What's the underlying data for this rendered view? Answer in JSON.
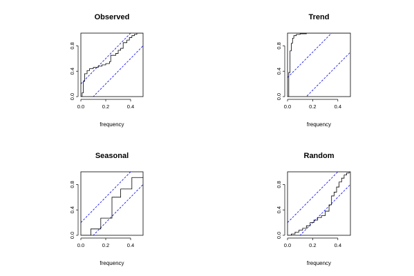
{
  "chart_data": [
    {
      "type": "line",
      "title": "Observed",
      "xlabel": "frequency",
      "ylabel": "",
      "xlim": [
        0,
        0.5
      ],
      "ylim": [
        0,
        1
      ],
      "x_ticks": [
        "0.0",
        "0.2",
        "0.4"
      ],
      "y_ticks": [
        "0.0",
        "0.4",
        "0.8"
      ],
      "band_offset": 0.2,
      "series": [
        {
          "values": [
            [
              0,
              0
            ],
            [
              0.01,
              0
            ],
            [
              0.01,
              0.06
            ],
            [
              0.02,
              0.06
            ],
            [
              0.02,
              0.24
            ],
            [
              0.03,
              0.24
            ],
            [
              0.03,
              0.36
            ],
            [
              0.05,
              0.36
            ],
            [
              0.05,
              0.41
            ],
            [
              0.07,
              0.41
            ],
            [
              0.07,
              0.44
            ],
            [
              0.1,
              0.44
            ],
            [
              0.1,
              0.46
            ],
            [
              0.14,
              0.46
            ],
            [
              0.14,
              0.48
            ],
            [
              0.17,
              0.48
            ],
            [
              0.17,
              0.5
            ],
            [
              0.2,
              0.5
            ],
            [
              0.2,
              0.52
            ],
            [
              0.23,
              0.52
            ],
            [
              0.23,
              0.55
            ],
            [
              0.24,
              0.55
            ],
            [
              0.24,
              0.65
            ],
            [
              0.28,
              0.65
            ],
            [
              0.28,
              0.68
            ],
            [
              0.3,
              0.68
            ],
            [
              0.3,
              0.73
            ],
            [
              0.32,
              0.73
            ],
            [
              0.32,
              0.76
            ],
            [
              0.34,
              0.76
            ],
            [
              0.34,
              0.85
            ],
            [
              0.37,
              0.85
            ],
            [
              0.37,
              0.89
            ],
            [
              0.39,
              0.89
            ],
            [
              0.39,
              0.93
            ],
            [
              0.41,
              0.93
            ],
            [
              0.41,
              0.96
            ],
            [
              0.43,
              0.96
            ],
            [
              0.43,
              0.98
            ],
            [
              0.45,
              0.98
            ],
            [
              0.45,
              1.0
            ],
            [
              0.5,
              1.0
            ]
          ]
        }
      ]
    },
    {
      "type": "line",
      "title": "Trend",
      "xlabel": "frequency",
      "ylabel": "",
      "xlim": [
        0,
        0.5
      ],
      "ylim": [
        0,
        1
      ],
      "x_ticks": [
        "0.0",
        "0.2",
        "0.4"
      ],
      "y_ticks": [
        "0.0",
        "0.4",
        "0.8"
      ],
      "band_offset": 0.3,
      "series": [
        {
          "values": [
            [
              0,
              0
            ],
            [
              0.01,
              0
            ],
            [
              0.01,
              0.38
            ],
            [
              0.02,
              0.38
            ],
            [
              0.02,
              0.72
            ],
            [
              0.03,
              0.72
            ],
            [
              0.03,
              0.84
            ],
            [
              0.04,
              0.84
            ],
            [
              0.04,
              0.92
            ],
            [
              0.05,
              0.92
            ],
            [
              0.05,
              0.96
            ],
            [
              0.07,
              0.96
            ],
            [
              0.07,
              0.98
            ],
            [
              0.1,
              0.98
            ],
            [
              0.1,
              0.99
            ],
            [
              0.15,
              0.99
            ],
            [
              0.15,
              1.0
            ],
            [
              0.5,
              1.0
            ]
          ]
        }
      ]
    },
    {
      "type": "line",
      "title": "Seasonal",
      "xlabel": "frequency",
      "ylabel": "",
      "xlim": [
        0,
        0.5
      ],
      "ylim": [
        0,
        1
      ],
      "x_ticks": [
        "0.0",
        "0.2",
        "0.4"
      ],
      "y_ticks": [
        "0.0",
        "0.4",
        "0.8"
      ],
      "band_offset": 0.2,
      "series": [
        {
          "values": [
            [
              0,
              0
            ],
            [
              0.08,
              0
            ],
            [
              0.08,
              0.1
            ],
            [
              0.16,
              0.1
            ],
            [
              0.16,
              0.27
            ],
            [
              0.25,
              0.27
            ],
            [
              0.25,
              0.6
            ],
            [
              0.32,
              0.6
            ],
            [
              0.32,
              0.73
            ],
            [
              0.41,
              0.73
            ],
            [
              0.41,
              0.91
            ],
            [
              0.5,
              0.91
            ]
          ]
        }
      ]
    },
    {
      "type": "line",
      "title": "Random",
      "xlabel": "frequency",
      "ylabel": "",
      "xlim": [
        0,
        0.5
      ],
      "ylim": [
        0,
        1
      ],
      "x_ticks": [
        "0.0",
        "0.2",
        "0.4"
      ],
      "y_ticks": [
        "0.0",
        "0.4",
        "0.8"
      ],
      "band_offset": 0.2,
      "series": [
        {
          "values": [
            [
              0,
              0
            ],
            [
              0.03,
              0
            ],
            [
              0.03,
              0.02
            ],
            [
              0.06,
              0.02
            ],
            [
              0.06,
              0.05
            ],
            [
              0.09,
              0.05
            ],
            [
              0.09,
              0.08
            ],
            [
              0.12,
              0.08
            ],
            [
              0.12,
              0.11
            ],
            [
              0.15,
              0.11
            ],
            [
              0.15,
              0.15
            ],
            [
              0.18,
              0.15
            ],
            [
              0.18,
              0.2
            ],
            [
              0.21,
              0.2
            ],
            [
              0.21,
              0.24
            ],
            [
              0.24,
              0.24
            ],
            [
              0.24,
              0.28
            ],
            [
              0.27,
              0.28
            ],
            [
              0.27,
              0.31
            ],
            [
              0.3,
              0.31
            ],
            [
              0.3,
              0.38
            ],
            [
              0.33,
              0.38
            ],
            [
              0.33,
              0.48
            ],
            [
              0.35,
              0.48
            ],
            [
              0.35,
              0.62
            ],
            [
              0.37,
              0.62
            ],
            [
              0.37,
              0.68
            ],
            [
              0.39,
              0.68
            ],
            [
              0.39,
              0.76
            ],
            [
              0.41,
              0.76
            ],
            [
              0.41,
              0.84
            ],
            [
              0.43,
              0.84
            ],
            [
              0.43,
              0.9
            ],
            [
              0.45,
              0.9
            ],
            [
              0.45,
              0.95
            ],
            [
              0.47,
              0.95
            ],
            [
              0.47,
              0.98
            ],
            [
              0.49,
              0.98
            ],
            [
              0.49,
              1.0
            ],
            [
              0.5,
              1.0
            ]
          ]
        }
      ]
    }
  ]
}
